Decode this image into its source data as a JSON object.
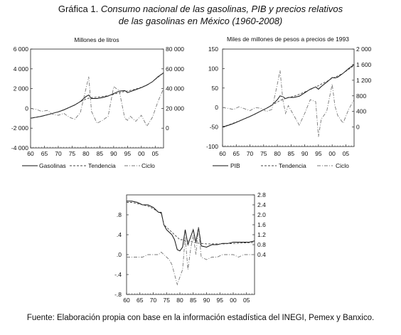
{
  "figure": {
    "label": "Gráfica 1.",
    "title_line1": "Consumo nacional de las gasolinas, PIB y precios relativos",
    "title_line2": "de las gasolinas en México (1960-2008)",
    "source": "Fuente: Elaboración propia con base en la información estadística del INEGI, Pemex y Banxico."
  },
  "chart_data": [
    {
      "id": "gasolinas",
      "type": "line",
      "unit_label": "Millones de litros",
      "x_ticks": [
        "60",
        "65",
        "70",
        "75",
        "80",
        "85",
        "90",
        "95",
        "00",
        "05"
      ],
      "left_ticks": [
        "-4 000",
        "-2 000",
        "0",
        "2 000",
        "4 000",
        "6 000"
      ],
      "right_ticks": [
        "0",
        "20 000",
        "40 000",
        "60 000",
        "80 000"
      ],
      "right_ylim": [
        -20000,
        80000
      ],
      "left_ylim": [
        -4000,
        6000
      ],
      "legend": [
        "Gasolinas",
        "Tendencia",
        "Ciclo"
      ],
      "x": [
        1960,
        1962,
        1964,
        1966,
        1968,
        1970,
        1972,
        1974,
        1976,
        1978,
        1980,
        1981,
        1982,
        1984,
        1986,
        1988,
        1990,
        1992,
        1994,
        1995,
        1996,
        1998,
        2000,
        2002,
        2004,
        2006,
        2008
      ],
      "series": [
        {
          "name": "Gasolinas",
          "axis": "right",
          "values": [
            10000,
            11000,
            12000,
            13500,
            15000,
            16500,
            18500,
            21000,
            23500,
            27000,
            32000,
            33500,
            30000,
            30000,
            31000,
            32500,
            35000,
            37500,
            38000,
            36000,
            37000,
            39000,
            41000,
            43500,
            47000,
            52000,
            56000
          ]
        },
        {
          "name": "Tendencia",
          "axis": "right",
          "values": [
            10200,
            11100,
            12200,
            13500,
            15000,
            16700,
            18700,
            21000,
            23700,
            26800,
            29500,
            30300,
            30900,
            31400,
            32000,
            32900,
            34200,
            35900,
            37200,
            37600,
            38200,
            39600,
            41400,
            43800,
            47000,
            51500,
            55800
          ]
        },
        {
          "name": "Ciclo",
          "axis": "left",
          "values": [
            0,
            -100,
            -300,
            -200,
            -600,
            -700,
            -500,
            -900,
            -1100,
            -400,
            2000,
            3200,
            -300,
            -1500,
            -1200,
            -800,
            2200,
            1800,
            -1000,
            -1200,
            -800,
            -1300,
            -700,
            -1800,
            -900,
            700,
            2000
          ]
        }
      ]
    },
    {
      "id": "pib",
      "type": "line",
      "unit_label": "Miles de millones de pesos a precios de 1993",
      "x_ticks": [
        "60",
        "65",
        "70",
        "75",
        "80",
        "85",
        "90",
        "95",
        "00",
        "05"
      ],
      "left_ticks": [
        "-100",
        "-50",
        "0",
        "50",
        "100",
        "150"
      ],
      "right_ticks": [
        "0",
        "400",
        "800",
        "1 200",
        "1 600",
        "2 000"
      ],
      "right_ylim": [
        -500,
        2000
      ],
      "left_ylim": [
        -100,
        150
      ],
      "legend": [
        "PIB",
        "Tendencia",
        "Ciclo"
      ],
      "x": [
        1960,
        1962,
        1964,
        1966,
        1968,
        1970,
        1972,
        1974,
        1976,
        1978,
        1980,
        1981,
        1982,
        1983,
        1984,
        1986,
        1988,
        1990,
        1992,
        1994,
        1995,
        1996,
        1998,
        2000,
        2001,
        2002,
        2004,
        2006,
        2008
      ],
      "series": [
        {
          "name": "PIB",
          "axis": "right",
          "values": [
            0,
            40,
            90,
            150,
            210,
            270,
            340,
            410,
            480,
            560,
            700,
            800,
            780,
            730,
            760,
            760,
            790,
            880,
            970,
            1030,
            970,
            1040,
            1150,
            1270,
            1260,
            1280,
            1380,
            1500,
            1600
          ]
        },
        {
          "name": "Tendencia",
          "axis": "right",
          "values": [
            10,
            50,
            100,
            155,
            215,
            275,
            340,
            410,
            480,
            560,
            640,
            680,
            710,
            730,
            750,
            790,
            840,
            900,
            960,
            1030,
            1060,
            1100,
            1170,
            1250,
            1280,
            1310,
            1380,
            1480,
            1580
          ]
        },
        {
          "name": "Ciclo",
          "axis": "left",
          "values": [
            0,
            -2,
            -5,
            2,
            -3,
            -8,
            0,
            -2,
            -10,
            -5,
            60,
            95,
            20,
            -15,
            5,
            -20,
            -45,
            -15,
            20,
            15,
            -75,
            -30,
            -10,
            60,
            5,
            -20,
            -40,
            -5,
            20
          ]
        }
      ]
    },
    {
      "id": "precios",
      "type": "line",
      "x_ticks": [
        "60",
        "65",
        "70",
        "75",
        "80",
        "85",
        "90",
        "95",
        "00",
        "05"
      ],
      "left_ticks": [
        "-.8",
        "-.4",
        ".0",
        ".4",
        ".8"
      ],
      "right_ticks": [
        "0.4",
        "0.8",
        "1.2",
        "1.6",
        "2.0",
        "2.4",
        "2.8"
      ],
      "right_ylim": [
        -1.2,
        2.8
      ],
      "left_ylim": [
        -0.8,
        1.2
      ],
      "legend": [],
      "x": [
        1960,
        1962,
        1964,
        1966,
        1968,
        1970,
        1972,
        1973,
        1974,
        1975,
        1976,
        1977,
        1978,
        1979,
        1980,
        1981,
        1982,
        1983,
        1984,
        1985,
        1986,
        1987,
        1988,
        1990,
        1992,
        1994,
        1996,
        1998,
        2000,
        2002,
        2004,
        2006,
        2008
      ],
      "series": [
        {
          "name": "",
          "axis": "right",
          "values": [
            2.55,
            2.55,
            2.5,
            2.4,
            2.4,
            2.3,
            2.1,
            2.1,
            1.6,
            1.4,
            1.3,
            1.2,
            1.0,
            0.6,
            0.55,
            0.7,
            1.4,
            0.8,
            1.1,
            1.4,
            0.9,
            1.5,
            0.75,
            0.7,
            0.8,
            0.8,
            0.85,
            0.85,
            0.9,
            0.9,
            0.9,
            0.9,
            0.95
          ]
        },
        {
          "name": "",
          "axis": "right",
          "values": [
            2.5,
            2.5,
            2.45,
            2.4,
            2.35,
            2.25,
            2.1,
            2.05,
            1.6,
            1.5,
            1.4,
            1.3,
            1.2,
            1.1,
            1.0,
            1.0,
            0.95,
            0.95,
            0.93,
            0.9,
            0.88,
            0.86,
            0.85,
            0.83,
            0.83,
            0.83,
            0.83,
            0.84,
            0.85,
            0.86,
            0.87,
            0.88,
            0.89
          ]
        },
        {
          "name": "",
          "axis": "left",
          "values": [
            -0.05,
            -0.05,
            -0.05,
            -0.05,
            0,
            0,
            0,
            0.05,
            0,
            -0.05,
            -0.1,
            -0.2,
            -0.4,
            -0.6,
            -0.45,
            -0.3,
            0.35,
            -0.3,
            0.1,
            0.4,
            0,
            0.55,
            -0.05,
            -0.1,
            -0.05,
            -0.05,
            0,
            0,
            0,
            -0.05,
            0,
            0,
            0
          ]
        }
      ]
    }
  ],
  "colors": {
    "main": "#111111",
    "trend": "#444444",
    "cycle": "#777777"
  }
}
